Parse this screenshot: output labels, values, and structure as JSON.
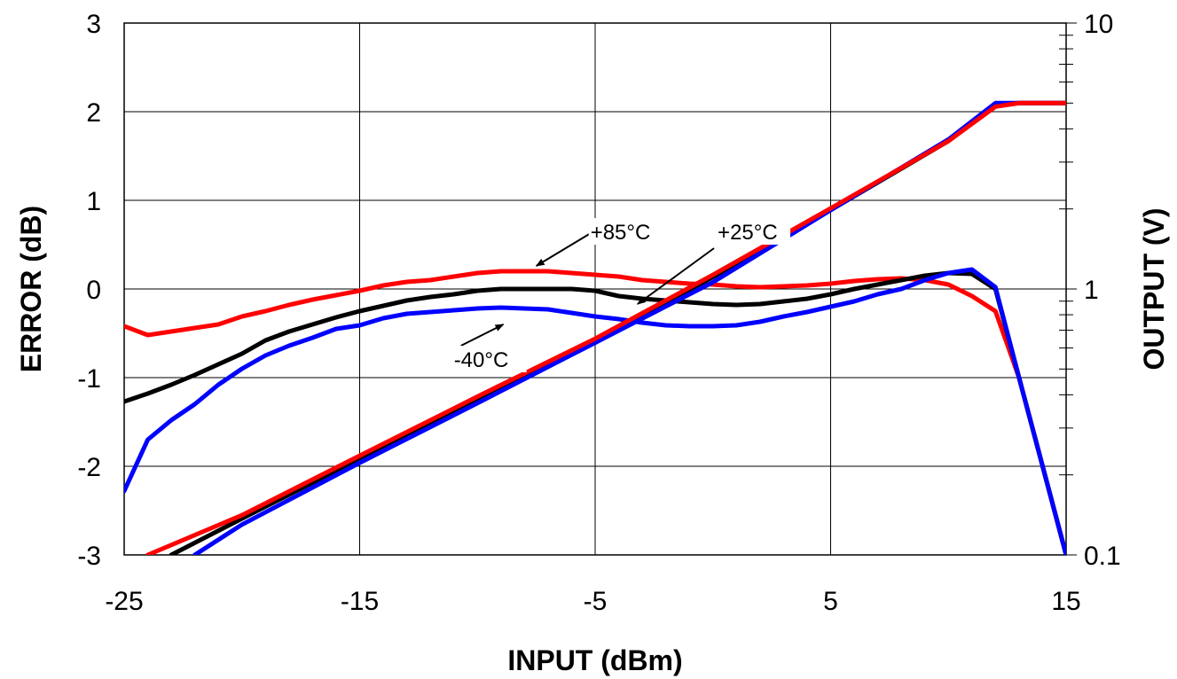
{
  "chart_data": {
    "type": "line",
    "xlabel": "INPUT (dBm)",
    "ylabel_left": "ERROR (dB)",
    "ylabel_right": "OUTPUT (V)",
    "xlim": [
      -25,
      15
    ],
    "ylim_left": [
      -3,
      3
    ],
    "ylim_right": [
      0.1,
      10
    ],
    "right_axis_scale": "log",
    "grid": true,
    "x_ticks": [
      "-25",
      "-15",
      "-5",
      "5",
      "15"
    ],
    "y_left_ticks": [
      "3",
      "2",
      "1",
      "0",
      "-1",
      "-2",
      "-3"
    ],
    "y_right_ticks": [
      "10",
      "1",
      "0.1"
    ],
    "colors": {
      "+25": "#000000",
      "-40": "#0000ff",
      "+85": "#ff0000"
    },
    "series": [
      {
        "name": "+85°C",
        "kind": "error",
        "color": "#ff0000",
        "points": [
          [
            -25,
            -0.42
          ],
          [
            -24,
            -0.52
          ],
          [
            -23,
            -0.48
          ],
          [
            -22,
            -0.44
          ],
          [
            -21,
            -0.4
          ],
          [
            -20,
            -0.31
          ],
          [
            -19,
            -0.25
          ],
          [
            -18,
            -0.18
          ],
          [
            -17,
            -0.12
          ],
          [
            -16,
            -0.07
          ],
          [
            -15,
            -0.02
          ],
          [
            -14,
            0.04
          ],
          [
            -13,
            0.08
          ],
          [
            -12,
            0.1
          ],
          [
            -11,
            0.14
          ],
          [
            -10,
            0.18
          ],
          [
            -9,
            0.2
          ],
          [
            -8,
            0.2
          ],
          [
            -7,
            0.2
          ],
          [
            -6,
            0.18
          ],
          [
            -5,
            0.16
          ],
          [
            -4,
            0.14
          ],
          [
            -3,
            0.1
          ],
          [
            -2,
            0.08
          ],
          [
            -1,
            0.06
          ],
          [
            0,
            0.05
          ],
          [
            1,
            0.03
          ],
          [
            2,
            0.02
          ],
          [
            3,
            0.03
          ],
          [
            4,
            0.04
          ],
          [
            5,
            0.06
          ],
          [
            6,
            0.09
          ],
          [
            7,
            0.11
          ],
          [
            8,
            0.12
          ],
          [
            9,
            0.1
          ],
          [
            10,
            0.05
          ],
          [
            11,
            -0.08
          ],
          [
            12,
            -0.25
          ],
          [
            13,
            -1.0
          ],
          [
            14,
            -2.0
          ],
          [
            15,
            -3.0
          ]
        ]
      },
      {
        "name": "+25°C",
        "kind": "error",
        "color": "#000000",
        "points": [
          [
            -25,
            -1.27
          ],
          [
            -24,
            -1.18
          ],
          [
            -23,
            -1.08
          ],
          [
            -22,
            -0.97
          ],
          [
            -21,
            -0.85
          ],
          [
            -20,
            -0.73
          ],
          [
            -19,
            -0.58
          ],
          [
            -18,
            -0.48
          ],
          [
            -17,
            -0.4
          ],
          [
            -16,
            -0.32
          ],
          [
            -15,
            -0.25
          ],
          [
            -14,
            -0.19
          ],
          [
            -13,
            -0.13
          ],
          [
            -12,
            -0.09
          ],
          [
            -11,
            -0.06
          ],
          [
            -10,
            -0.02
          ],
          [
            -9,
            0.0
          ],
          [
            -8,
            0.0
          ],
          [
            -7,
            0.0
          ],
          [
            -6,
            0.0
          ],
          [
            -5,
            -0.02
          ],
          [
            -4,
            -0.08
          ],
          [
            -3,
            -0.11
          ],
          [
            -2,
            -0.13
          ],
          [
            -1,
            -0.15
          ],
          [
            0,
            -0.17
          ],
          [
            1,
            -0.18
          ],
          [
            2,
            -0.17
          ],
          [
            3,
            -0.14
          ],
          [
            4,
            -0.11
          ],
          [
            5,
            -0.06
          ],
          [
            6,
            0.0
          ],
          [
            7,
            0.05
          ],
          [
            8,
            0.1
          ],
          [
            9,
            0.15
          ],
          [
            10,
            0.18
          ],
          [
            11,
            0.17
          ],
          [
            12,
            0.0
          ],
          [
            13,
            -1.0
          ],
          [
            14,
            -2.0
          ],
          [
            15,
            -3.0
          ]
        ]
      },
      {
        "name": "-40°C",
        "kind": "error",
        "color": "#0000ff",
        "points": [
          [
            -25,
            -2.28
          ],
          [
            -24,
            -1.7
          ],
          [
            -23,
            -1.48
          ],
          [
            -22,
            -1.3
          ],
          [
            -21,
            -1.08
          ],
          [
            -20,
            -0.9
          ],
          [
            -19,
            -0.75
          ],
          [
            -18,
            -0.64
          ],
          [
            -17,
            -0.55
          ],
          [
            -16,
            -0.45
          ],
          [
            -15,
            -0.41
          ],
          [
            -14,
            -0.33
          ],
          [
            -13,
            -0.28
          ],
          [
            -12,
            -0.26
          ],
          [
            -11,
            -0.24
          ],
          [
            -10,
            -0.22
          ],
          [
            -9,
            -0.21
          ],
          [
            -8,
            -0.22
          ],
          [
            -7,
            -0.23
          ],
          [
            -6,
            -0.27
          ],
          [
            -5,
            -0.31
          ],
          [
            -4,
            -0.34
          ],
          [
            -3,
            -0.38
          ],
          [
            -2,
            -0.41
          ],
          [
            -1,
            -0.42
          ],
          [
            0,
            -0.42
          ],
          [
            1,
            -0.41
          ],
          [
            2,
            -0.37
          ],
          [
            3,
            -0.31
          ],
          [
            4,
            -0.26
          ],
          [
            5,
            -0.2
          ],
          [
            6,
            -0.14
          ],
          [
            7,
            -0.06
          ],
          [
            8,
            0.0
          ],
          [
            9,
            0.1
          ],
          [
            10,
            0.18
          ],
          [
            11,
            0.22
          ],
          [
            12,
            0.02
          ],
          [
            13,
            -1.0
          ],
          [
            14,
            -2.0
          ],
          [
            15,
            -3.0
          ]
        ]
      },
      {
        "name": "+25°C",
        "kind": "output",
        "color": "#000000",
        "points": [
          [
            -23,
            0.1
          ],
          [
            -20,
            0.137
          ],
          [
            -15,
            0.23
          ],
          [
            -10,
            0.382
          ],
          [
            -5,
            0.638
          ],
          [
            0,
            1.11
          ],
          [
            5,
            1.98
          ],
          [
            10,
            3.6
          ],
          [
            12,
            4.95
          ],
          [
            13,
            5.0
          ],
          [
            15,
            5.0
          ]
        ]
      },
      {
        "name": "-40°C",
        "kind": "output",
        "color": "#0000ff",
        "points": [
          [
            -22,
            0.1
          ],
          [
            -20,
            0.13
          ],
          [
            -15,
            0.222
          ],
          [
            -10,
            0.372
          ],
          [
            -5,
            0.628
          ],
          [
            0,
            1.06
          ],
          [
            5,
            1.98
          ],
          [
            10,
            3.65
          ],
          [
            12,
            5.0
          ],
          [
            13,
            5.0
          ],
          [
            15,
            5.0
          ]
        ]
      },
      {
        "name": "+85°C",
        "kind": "output",
        "color": "#ff0000",
        "points": [
          [
            -24,
            0.1
          ],
          [
            -20,
            0.141
          ],
          [
            -15,
            0.236
          ],
          [
            -10,
            0.394
          ],
          [
            -5,
            0.65
          ],
          [
            0,
            1.13
          ],
          [
            5,
            2.01
          ],
          [
            10,
            3.6
          ],
          [
            12,
            4.85
          ],
          [
            13,
            5.0
          ],
          [
            15,
            5.0
          ]
        ]
      }
    ],
    "annotations": [
      {
        "text": "+85°C",
        "x": -5.2,
        "y": 0.56,
        "arrow_to": [
          -7.5,
          0.26
        ],
        "anchor": "start"
      },
      {
        "text": "+25°C",
        "x": 0.2,
        "y": 0.56,
        "arrow_to": [
          -3.2,
          -0.17
        ],
        "anchor": "start"
      },
      {
        "text": "-40°C",
        "x": -11.0,
        "y": -0.88,
        "arrow_to": [
          -8.9,
          -0.4
        ],
        "anchor": "start"
      }
    ]
  }
}
